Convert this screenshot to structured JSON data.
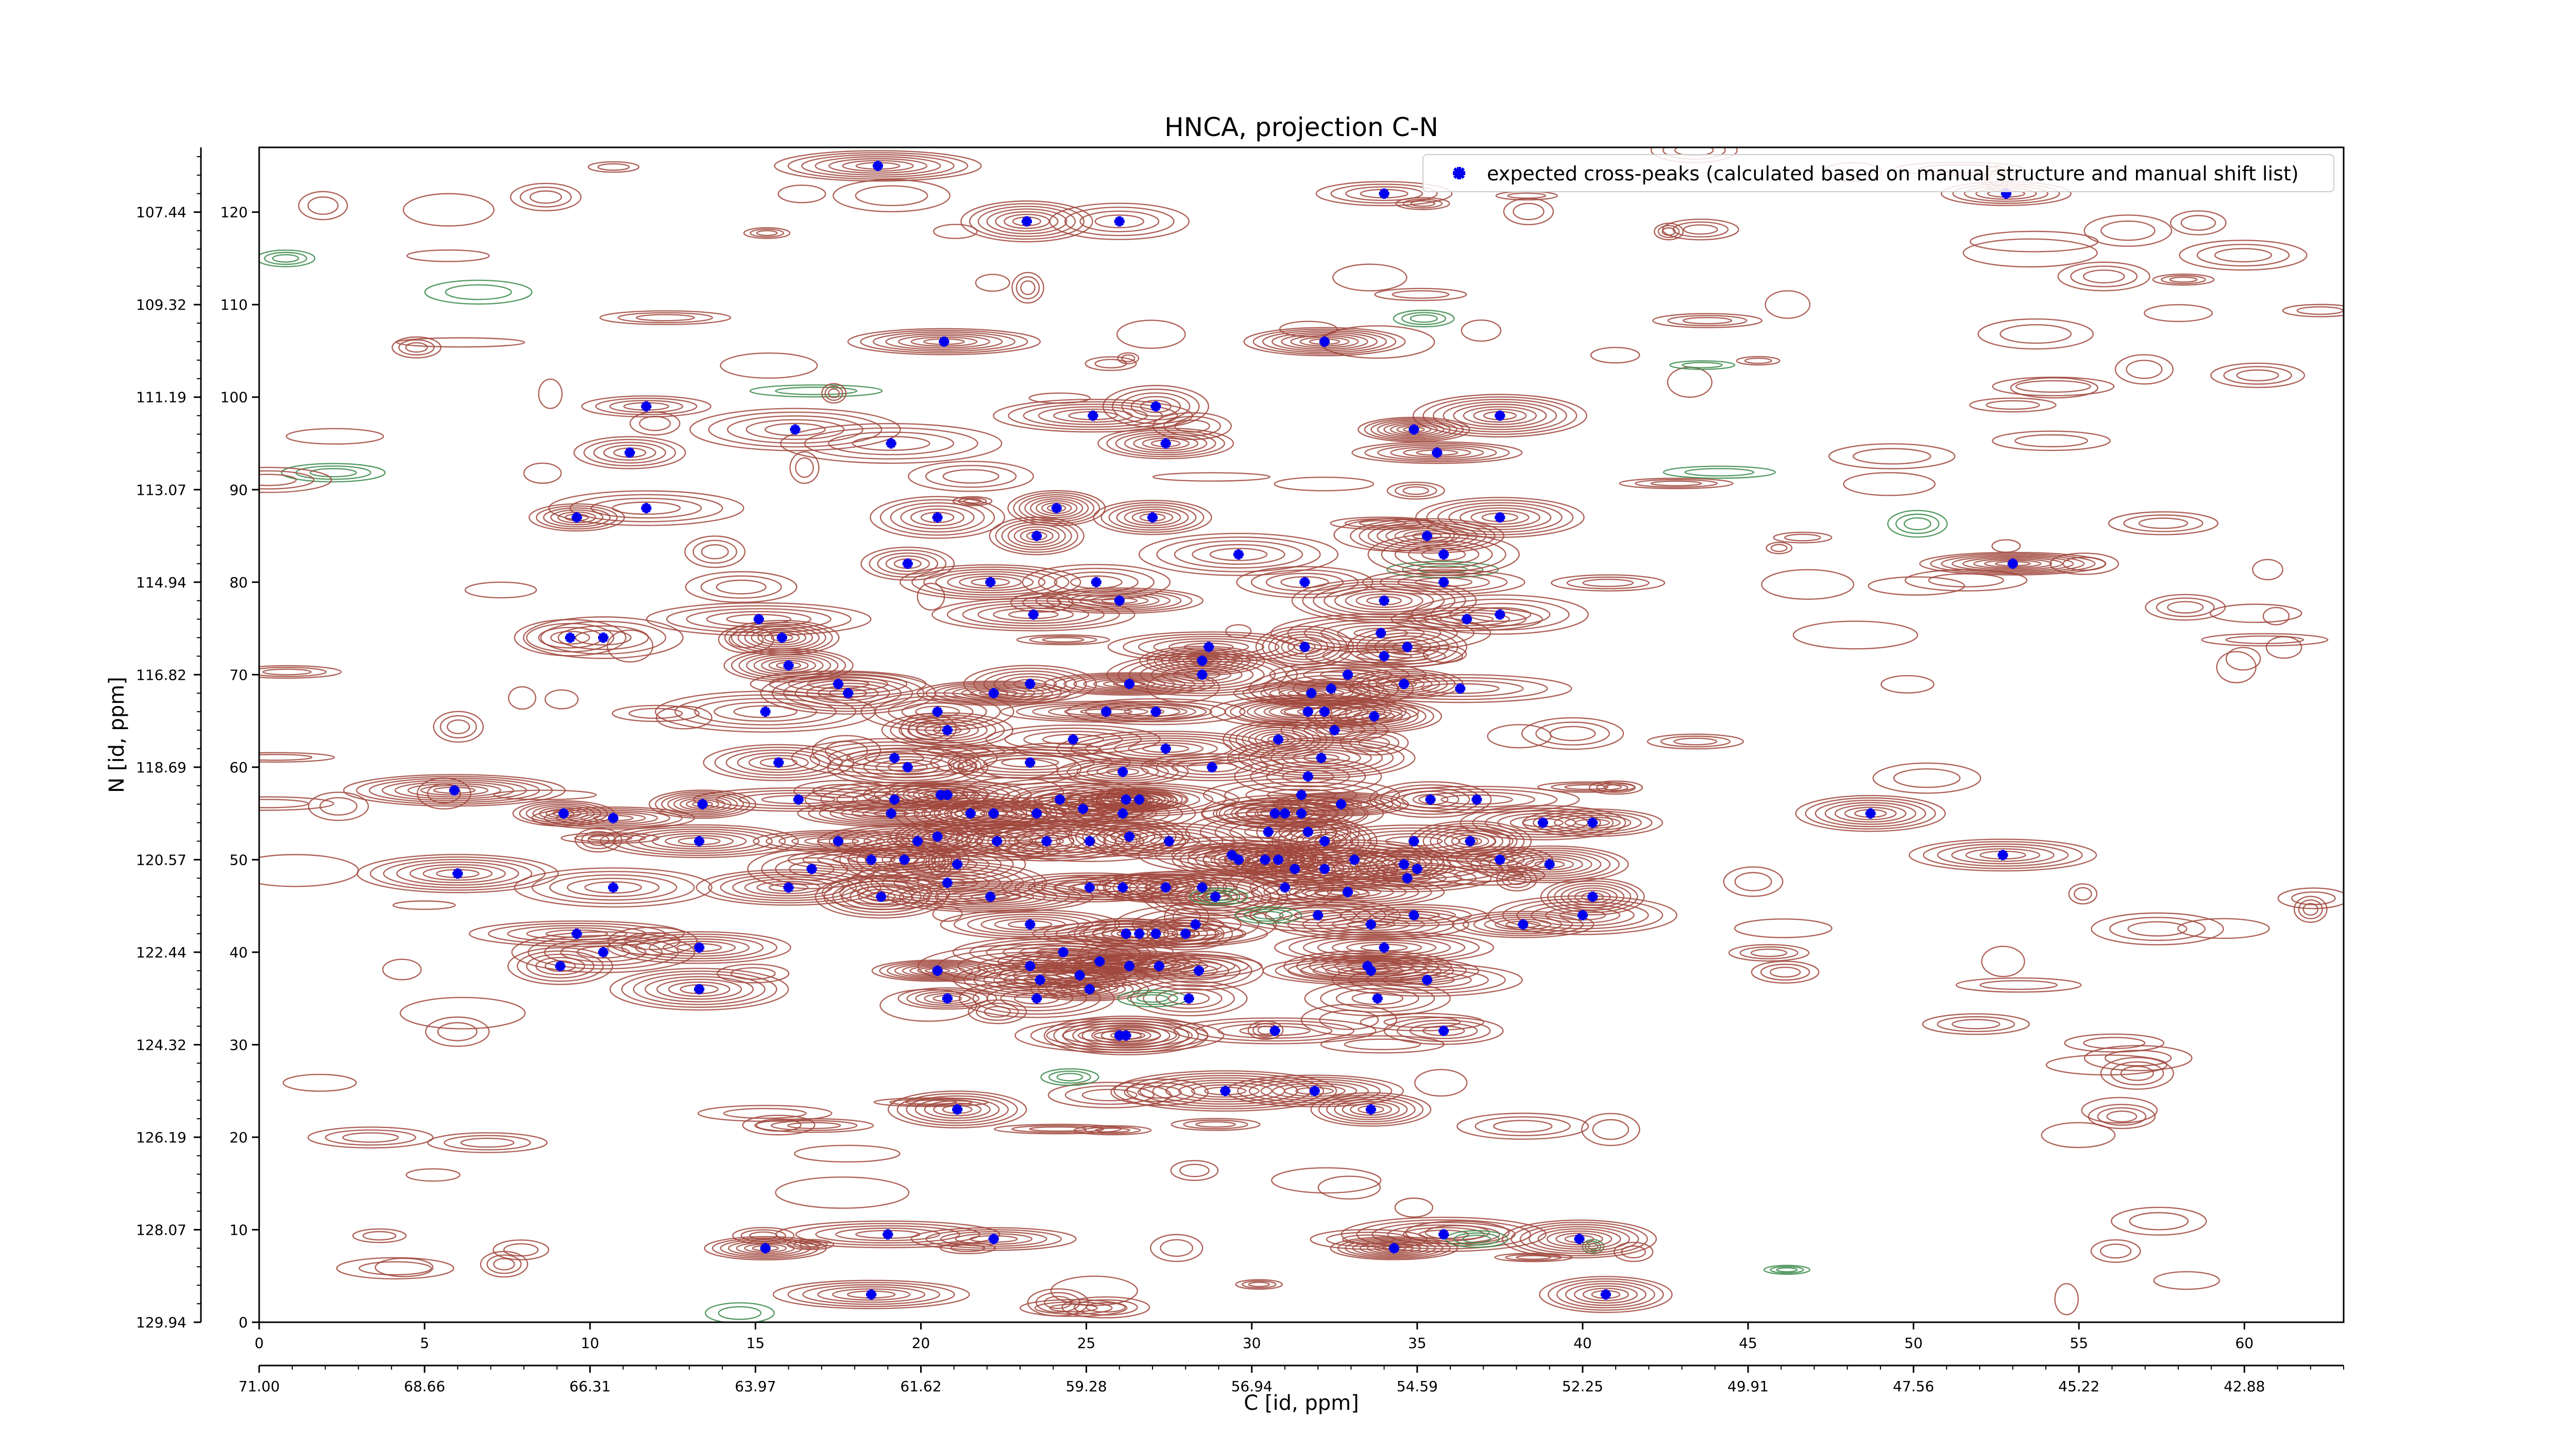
{
  "chart_data": {
    "type": "contour-scatter",
    "title": "HNCA, projection C-N",
    "xlabel": "C [id, ppm]",
    "ylabel": "N [id, ppm]",
    "x_index_ticks": [
      0,
      5,
      10,
      15,
      20,
      25,
      30,
      35,
      40,
      45,
      50,
      55,
      60
    ],
    "x_ppm_tick_labels": [
      "71.00",
      "68.66",
      "66.31",
      "63.97",
      "61.62",
      "59.28",
      "56.94",
      "54.59",
      "52.25",
      "49.91",
      "47.56",
      "45.22",
      "42.88"
    ],
    "y_index_ticks": [
      0,
      10,
      20,
      30,
      40,
      50,
      60,
      70,
      80,
      90,
      100,
      110,
      120
    ],
    "y_ppm_tick_labels": [
      "129.94",
      "128.07",
      "126.19",
      "124.32",
      "122.44",
      "120.57",
      "118.69",
      "116.82",
      "114.94",
      "113.07",
      "111.19",
      "109.32",
      "107.44"
    ],
    "xlim": [
      0,
      63
    ],
    "ylim": [
      0,
      127
    ],
    "legend": {
      "position": "top-right",
      "label": "expected cross-peaks (calculated based on manual structure and manual shift list)"
    },
    "colors": {
      "positive_contour": "#a0463c",
      "negative_contour": "#3a8a4a",
      "marker": "#0000ee"
    },
    "peaks": [
      [
        18.7,
        125
      ],
      [
        34,
        122
      ],
      [
        23.2,
        119
      ],
      [
        26,
        119
      ],
      [
        52.8,
        122
      ],
      [
        20.7,
        106
      ],
      [
        32.2,
        106
      ],
      [
        11.7,
        99
      ],
      [
        25.2,
        98
      ],
      [
        27.1,
        99
      ],
      [
        37.5,
        98
      ],
      [
        34.9,
        96.5
      ],
      [
        16.2,
        96.5
      ],
      [
        11.2,
        94
      ],
      [
        19.1,
        95
      ],
      [
        27.4,
        95
      ],
      [
        35.6,
        94
      ],
      [
        9.6,
        87
      ],
      [
        11.7,
        88
      ],
      [
        20.5,
        87
      ],
      [
        24.1,
        88
      ],
      [
        27,
        87
      ],
      [
        37.5,
        87
      ],
      [
        23.5,
        85
      ],
      [
        35.3,
        85
      ],
      [
        35.8,
        83
      ],
      [
        29.6,
        83
      ],
      [
        19.6,
        82
      ],
      [
        53,
        82
      ],
      [
        22.1,
        80
      ],
      [
        25.3,
        80
      ],
      [
        31.6,
        80
      ],
      [
        35.8,
        80
      ],
      [
        15.1,
        76
      ],
      [
        23.4,
        76.5
      ],
      [
        26,
        78
      ],
      [
        34,
        78
      ],
      [
        36.5,
        76
      ],
      [
        37.5,
        76.5
      ],
      [
        9.4,
        74
      ],
      [
        10.4,
        74
      ],
      [
        15.8,
        74
      ],
      [
        33.9,
        74.5
      ],
      [
        34.7,
        73
      ],
      [
        31.6,
        73
      ],
      [
        28.7,
        73
      ],
      [
        16,
        71
      ],
      [
        28.5,
        71.5
      ],
      [
        28.5,
        70
      ],
      [
        34,
        72
      ],
      [
        23.3,
        69
      ],
      [
        26.3,
        69
      ],
      [
        17.5,
        69
      ],
      [
        17.8,
        68
      ],
      [
        22.2,
        68
      ],
      [
        31.8,
        68
      ],
      [
        32.4,
        68.5
      ],
      [
        32.9,
        70
      ],
      [
        34.6,
        69
      ],
      [
        36.3,
        68.5
      ],
      [
        15.3,
        66
      ],
      [
        20.5,
        66
      ],
      [
        20.8,
        64
      ],
      [
        25.6,
        66
      ],
      [
        27.1,
        66
      ],
      [
        31.7,
        66
      ],
      [
        32.2,
        66
      ],
      [
        33.7,
        65.5
      ],
      [
        32.5,
        64
      ],
      [
        24.6,
        63
      ],
      [
        30.8,
        63
      ],
      [
        15.7,
        60.5
      ],
      [
        19.2,
        61
      ],
      [
        19.6,
        60
      ],
      [
        23.3,
        60.5
      ],
      [
        26.1,
        59.5
      ],
      [
        27.4,
        62
      ],
      [
        28.8,
        60
      ],
      [
        32.1,
        61
      ],
      [
        31.7,
        59
      ],
      [
        5.9,
        57.5
      ],
      [
        16.3,
        56.5
      ],
      [
        13.4,
        56
      ],
      [
        19.2,
        56.5
      ],
      [
        20.6,
        57
      ],
      [
        20.8,
        57
      ],
      [
        24.2,
        56.5
      ],
      [
        26.2,
        56.5
      ],
      [
        26.6,
        56.5
      ],
      [
        31.5,
        57
      ],
      [
        35.4,
        56.5
      ],
      [
        36.8,
        56.5
      ],
      [
        9.2,
        55
      ],
      [
        10.7,
        54.5
      ],
      [
        19.1,
        55
      ],
      [
        21.5,
        55
      ],
      [
        22.2,
        55
      ],
      [
        23.5,
        55
      ],
      [
        24.9,
        55.5
      ],
      [
        26.1,
        55
      ],
      [
        30.7,
        55
      ],
      [
        31,
        55
      ],
      [
        31.5,
        55
      ],
      [
        32.7,
        56
      ],
      [
        38.8,
        54
      ],
      [
        40.3,
        54
      ],
      [
        48.7,
        55
      ],
      [
        13.3,
        52
      ],
      [
        17.5,
        52
      ],
      [
        19.9,
        52
      ],
      [
        20.5,
        52.5
      ],
      [
        22.3,
        52
      ],
      [
        23.8,
        52
      ],
      [
        25.1,
        52
      ],
      [
        26.3,
        52.5
      ],
      [
        27.5,
        52
      ],
      [
        30.5,
        53
      ],
      [
        31.7,
        53
      ],
      [
        32.2,
        52
      ],
      [
        34.9,
        52
      ],
      [
        36.6,
        52
      ],
      [
        16.7,
        49
      ],
      [
        18.5,
        50
      ],
      [
        19.5,
        50
      ],
      [
        21.1,
        49.5
      ],
      [
        29.4,
        50.5
      ],
      [
        29.6,
        50
      ],
      [
        30.4,
        50
      ],
      [
        30.8,
        50
      ],
      [
        31.3,
        49
      ],
      [
        32.2,
        49
      ],
      [
        33.1,
        50
      ],
      [
        34.6,
        49.5
      ],
      [
        35,
        49
      ],
      [
        37.5,
        50
      ],
      [
        39,
        49.5
      ],
      [
        52.7,
        50.5
      ],
      [
        6,
        48.5
      ],
      [
        10.7,
        47
      ],
      [
        16,
        47
      ],
      [
        18.8,
        46
      ],
      [
        20.8,
        47.5
      ],
      [
        22.1,
        46
      ],
      [
        25.1,
        47
      ],
      [
        26.1,
        47
      ],
      [
        27.4,
        47
      ],
      [
        28.5,
        47
      ],
      [
        28.9,
        46
      ],
      [
        31,
        47
      ],
      [
        32.9,
        46.5
      ],
      [
        34.7,
        48
      ],
      [
        32,
        44
      ],
      [
        34.9,
        44
      ],
      [
        28.3,
        43
      ],
      [
        38.2,
        43
      ],
      [
        40,
        44
      ],
      [
        40.3,
        46
      ],
      [
        9.6,
        42
      ],
      [
        23.3,
        43
      ],
      [
        26.2,
        42
      ],
      [
        26.6,
        42
      ],
      [
        27.1,
        42
      ],
      [
        28,
        42
      ],
      [
        33.6,
        43
      ],
      [
        34,
        40.5
      ],
      [
        9.1,
        38.5
      ],
      [
        10.4,
        40
      ],
      [
        13.3,
        40.5
      ],
      [
        24.3,
        40
      ],
      [
        25.4,
        39
      ],
      [
        26.3,
        38.5
      ],
      [
        27.2,
        38.5
      ],
      [
        28.4,
        38
      ],
      [
        20.5,
        38
      ],
      [
        23.3,
        38.5
      ],
      [
        23.6,
        37
      ],
      [
        24.8,
        37.5
      ],
      [
        25.1,
        36
      ],
      [
        33.5,
        38.5
      ],
      [
        33.6,
        38
      ],
      [
        35.3,
        37
      ],
      [
        13.3,
        36
      ],
      [
        20.8,
        35
      ],
      [
        23.5,
        35
      ],
      [
        28.1,
        35
      ],
      [
        33.8,
        35
      ],
      [
        26,
        31
      ],
      [
        26.2,
        31
      ],
      [
        30.7,
        31.5
      ],
      [
        35.8,
        31.5
      ],
      [
        29.2,
        25
      ],
      [
        31.9,
        25
      ],
      [
        33.6,
        23
      ],
      [
        21.1,
        23
      ],
      [
        15.3,
        8
      ],
      [
        19,
        9.5
      ],
      [
        22.2,
        9
      ],
      [
        34.3,
        8
      ],
      [
        35.8,
        9.5
      ],
      [
        39.9,
        9
      ],
      [
        18.5,
        3
      ],
      [
        40.7,
        3
      ]
    ]
  }
}
